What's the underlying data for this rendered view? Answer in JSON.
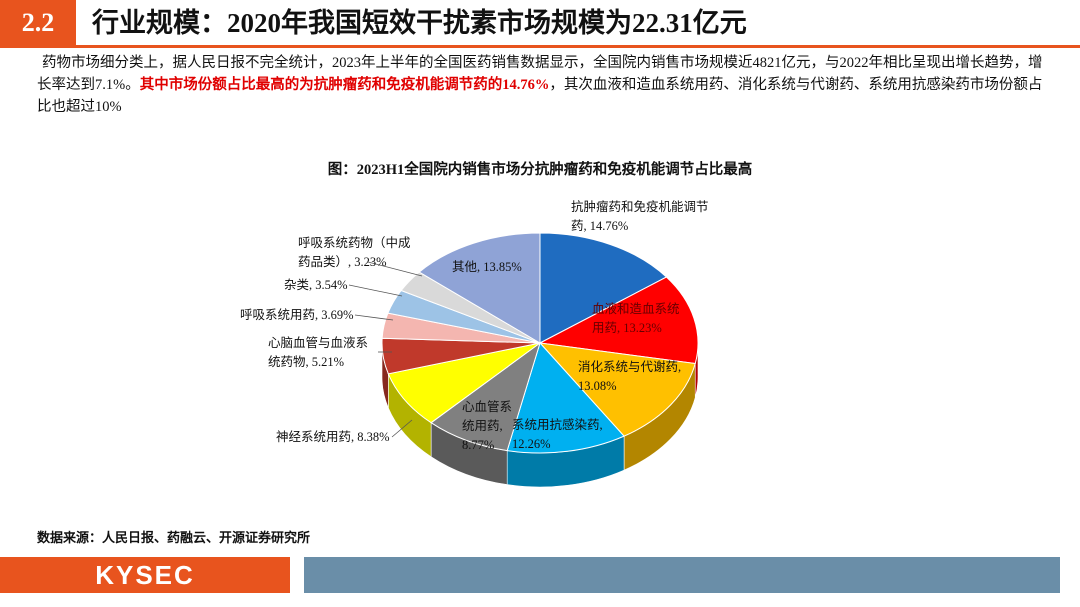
{
  "header": {
    "number": "2.2",
    "title": "行业规模：2020年我国短效干扰素市场规模为22.31亿元"
  },
  "paragraph": {
    "text_1": "药物市场细分类上，据人民日报不完全统计，2023年上半年的全国医药销售数据显示，全国院内销售市场规模近4821亿元，与2022年相比呈现出增长趋势，增长率达到7.1%。",
    "highlight": "其中市场份额占比最高的为抗肿瘤药和免疫机能调节药的14.76%",
    "text_2": "，其次血液和造血系统用药、消化系统与代谢药、系统用抗感染药市场份额占比也超过10%"
  },
  "chart_data": {
    "type": "pie",
    "title": "图：2023H1全国院内销售市场分抗肿瘤药和免疫机能调节占比最高",
    "values": [
      14.76,
      13.23,
      13.08,
      12.26,
      8.77,
      8.38,
      5.21,
      3.69,
      3.54,
      3.23,
      13.85
    ],
    "value_labels": [
      "抗肿瘤药和免疫机能调节药, 14.76%",
      "血液和造血系统用药, 13.23%",
      "消化系统与代谢药, 13.08%",
      "系统用抗感染药, 12.26%",
      "心血管系统用药, 8.77%",
      "神经系统用药, 8.38%",
      "心脑血管与血液系统药物, 5.21%",
      "呼吸系统用药, 3.69%",
      "杂类, 3.54%",
      "呼吸系统药物（中成药品类）, 3.23%",
      "其他, 13.85%"
    ],
    "colors": [
      "#1f6cc0",
      "#ff0000",
      "#ffc000",
      "#00b0f0",
      "#808080",
      "#ffff00",
      "#c0392b",
      "#f4b6b0",
      "#9dc3e6",
      "#d9d9d9",
      "#8fa3d6"
    ]
  },
  "source": "数据来源：人民日报、药融云、开源证券研究所",
  "footer": {
    "logo": "KYSEC"
  }
}
